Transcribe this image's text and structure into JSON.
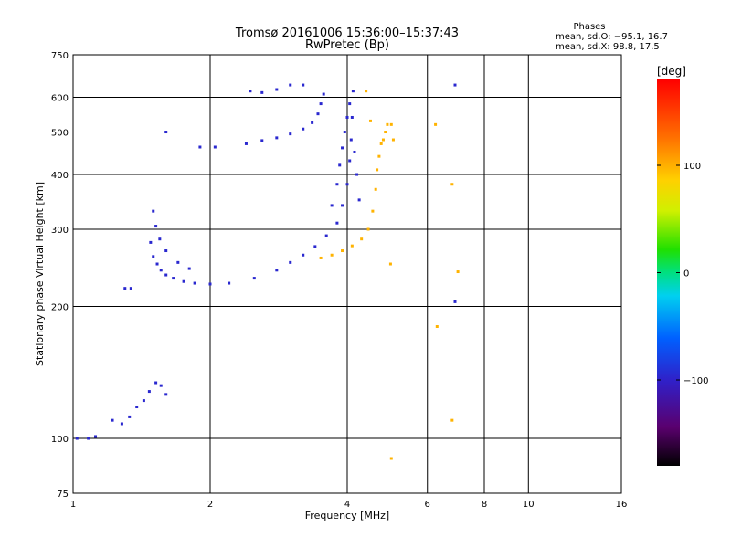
{
  "chart_data": {
    "type": "scatter",
    "title": "Tromsø 20161006 15:36:00–15:37:43",
    "subtitle": "RwPretec (Bp)",
    "xlabel": "Frequency [MHz]",
    "ylabel": "Stationary phase Virtual Height [km]",
    "x_scale": "log",
    "y_scale": "log",
    "xlim": [
      1,
      16
    ],
    "ylim": [
      75,
      750
    ],
    "x_ticks": [
      "1",
      "2",
      "4",
      "6",
      "8",
      "10",
      "16"
    ],
    "y_ticks": [
      "75",
      "100",
      "200",
      "300",
      "400",
      "500",
      "600",
      "750"
    ],
    "grid": true,
    "phase_stats": {
      "title": "Phases",
      "line_o": "mean, sd,O: −95.1, 16.7",
      "line_x": "mean, sd,X:  98.8, 17.5"
    },
    "colorbar": {
      "label": "[deg]",
      "range": [
        -180,
        180
      ],
      "ticks": [
        "100",
        "0",
        "−100"
      ],
      "tick_values": [
        100,
        0,
        -100
      ]
    },
    "series": [
      {
        "mode": "O",
        "phase_deg": -95,
        "points": [
          [
            1.02,
            100
          ],
          [
            1.08,
            100
          ],
          [
            1.12,
            101
          ],
          [
            1.22,
            110
          ],
          [
            1.28,
            108
          ],
          [
            1.33,
            112
          ],
          [
            1.38,
            118
          ],
          [
            1.43,
            122
          ],
          [
            1.47,
            128
          ],
          [
            1.52,
            134
          ],
          [
            1.56,
            132
          ],
          [
            1.6,
            126
          ],
          [
            1.3,
            220
          ],
          [
            1.34,
            220
          ],
          [
            1.48,
            280
          ],
          [
            1.5,
            260
          ],
          [
            1.53,
            250
          ],
          [
            1.56,
            242
          ],
          [
            1.6,
            236
          ],
          [
            1.66,
            232
          ],
          [
            1.75,
            228
          ],
          [
            1.85,
            226
          ],
          [
            2.0,
            225
          ],
          [
            2.2,
            226
          ],
          [
            2.5,
            232
          ],
          [
            2.8,
            242
          ],
          [
            3.0,
            252
          ],
          [
            3.2,
            262
          ],
          [
            3.4,
            274
          ],
          [
            3.6,
            290
          ],
          [
            3.8,
            310
          ],
          [
            3.9,
            340
          ],
          [
            4.0,
            380
          ],
          [
            4.05,
            430
          ],
          [
            4.08,
            480
          ],
          [
            4.1,
            540
          ],
          [
            4.12,
            620
          ],
          [
            1.5,
            330
          ],
          [
            1.52,
            305
          ],
          [
            1.55,
            285
          ],
          [
            1.6,
            268
          ],
          [
            1.7,
            252
          ],
          [
            1.8,
            244
          ],
          [
            3.7,
            340
          ],
          [
            3.8,
            380
          ],
          [
            3.85,
            420
          ],
          [
            3.9,
            460
          ],
          [
            3.95,
            500
          ],
          [
            4.0,
            540
          ],
          [
            4.05,
            580
          ],
          [
            4.15,
            450
          ],
          [
            4.2,
            400
          ],
          [
            4.25,
            350
          ],
          [
            2.4,
            470
          ],
          [
            2.6,
            478
          ],
          [
            2.8,
            485
          ],
          [
            3.0,
            495
          ],
          [
            3.2,
            508
          ],
          [
            3.35,
            525
          ],
          [
            3.45,
            550
          ],
          [
            3.5,
            580
          ],
          [
            3.55,
            610
          ],
          [
            2.45,
            620
          ],
          [
            2.6,
            615
          ],
          [
            2.8,
            625
          ],
          [
            3.0,
            640
          ],
          [
            3.2,
            640
          ],
          [
            1.6,
            500
          ],
          [
            1.9,
            462
          ],
          [
            2.05,
            462
          ],
          [
            6.9,
            640
          ],
          [
            6.9,
            205
          ]
        ]
      },
      {
        "mode": "X",
        "phase_deg": 98,
        "points": [
          [
            3.5,
            258
          ],
          [
            3.7,
            262
          ],
          [
            3.9,
            268
          ],
          [
            4.1,
            275
          ],
          [
            4.3,
            285
          ],
          [
            4.45,
            300
          ],
          [
            4.55,
            330
          ],
          [
            4.62,
            370
          ],
          [
            4.65,
            410
          ],
          [
            4.7,
            440
          ],
          [
            4.75,
            470
          ],
          [
            4.8,
            480
          ],
          [
            4.85,
            500
          ],
          [
            4.9,
            520
          ],
          [
            5.0,
            520
          ],
          [
            5.05,
            480
          ],
          [
            4.98,
            250
          ],
          [
            6.25,
            520
          ],
          [
            6.8,
            380
          ],
          [
            7.0,
            240
          ],
          [
            6.3,
            180
          ],
          [
            4.4,
            620
          ],
          [
            4.5,
            530
          ],
          [
            5.0,
            90
          ],
          [
            6.8,
            110
          ]
        ]
      }
    ]
  }
}
